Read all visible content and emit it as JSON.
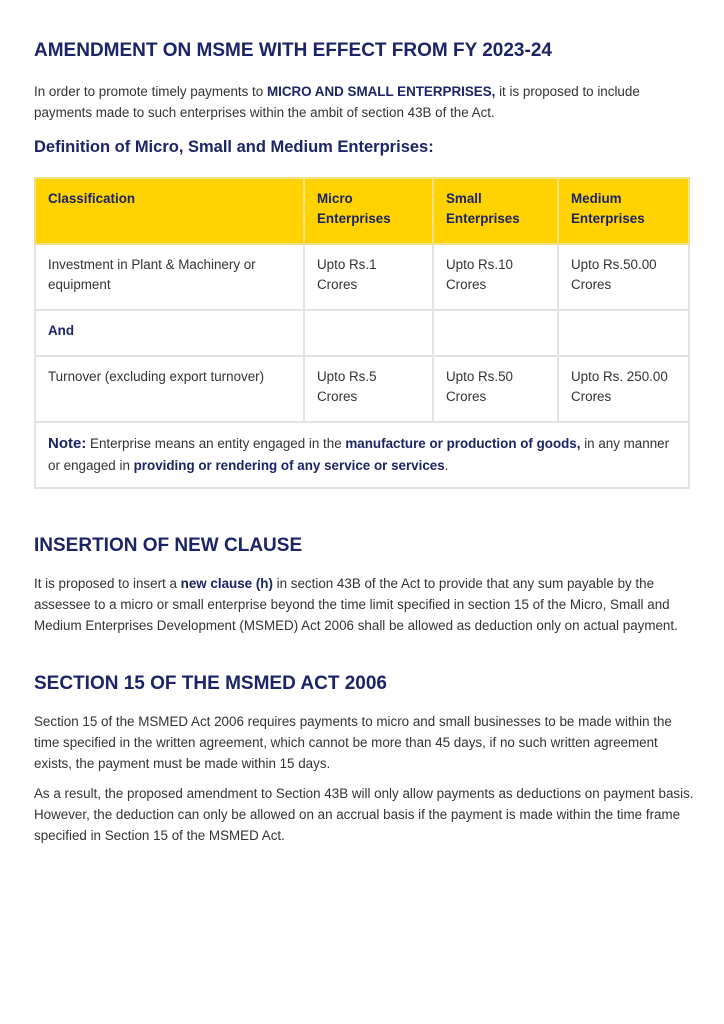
{
  "section1": {
    "title": "AMENDMENT ON MSME WITH EFFECT FROM FY 2023-24",
    "intro_pre": "In order to promote timely payments to  ",
    "intro_bold": "MICRO AND SMALL ENTERPRISES,",
    "intro_post": " it is proposed to include payments made to such enterprises within the ambit of section 43B of the Act.",
    "subtitle": "Definition of Micro, Small and Medium Enterprises:"
  },
  "table": {
    "headers": [
      "Classification",
      "Micro Enterprises",
      "Small Enterprises",
      "Medium Enterprises"
    ],
    "rows": [
      [
        "Investment in Plant & Machinery or equipment",
        "Upto Rs.1 Crores",
        "Upto Rs.10 Crores",
        "Upto Rs.50.00 Crores"
      ],
      [
        "And",
        "",
        "",
        ""
      ],
      [
        "Turnover (excluding export turnover)",
        "Upto Rs.5 Crores",
        "Upto Rs.50 Crores",
        "Upto Rs. 250.00 Crores"
      ]
    ],
    "note": {
      "label": "Note:",
      "t1": " Enterprise means an entity engaged in the ",
      "b1": "manufacture or production of goods,",
      "t2": " in any manner or engaged in ",
      "b2": "providing or rendering of any service or services",
      "t3": "."
    }
  },
  "section2": {
    "title": "INSERTION OF NEW CLAUSE",
    "pre": "It is proposed to insert a ",
    "bold": "new clause (h)",
    "post": " in section 43B of the Act to provide that any sum payable by the assessee to a micro or small enterprise beyond the time limit specified in section 15 of the Micro, Small and Medium Enterprises Development (MSMED) Act 2006 shall be allowed as deduction only on actual payment."
  },
  "section3": {
    "title": "SECTION 15 OF THE MSMED ACT 2006",
    "p1": "Section 15 of the MSMED Act 2006 requires payments to micro and small businesses to be made within the time specified in the written agreement, which cannot be more than 45 days, if no such written agreement exists, the payment must be made within 15 days.",
    "p2": "As a result, the proposed amendment to Section 43B will only allow payments as deductions on payment basis. However, the deduction can only be allowed on an accrual basis if the payment is made within the time frame specified in Section 15 of the MSMED Act."
  },
  "colors": {
    "heading": "#1b2466",
    "table_header": "#ffd200",
    "border": "#e3e3e3"
  }
}
